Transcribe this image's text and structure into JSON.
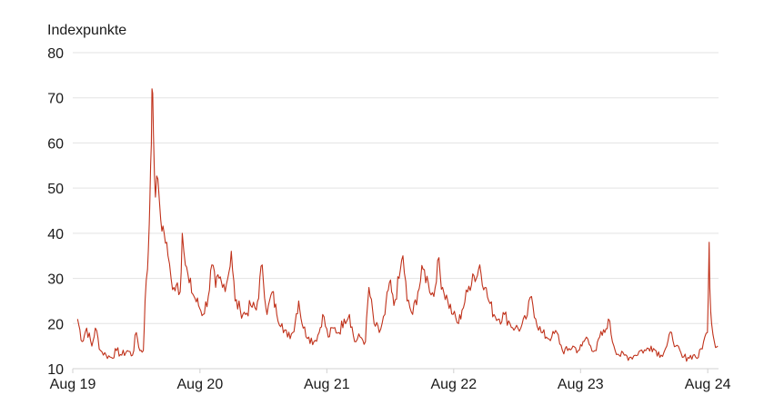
{
  "chart_data": {
    "type": "line",
    "ylabel": "Indexpunkte",
    "ylim": [
      10,
      80
    ],
    "y_ticks": [
      10,
      20,
      30,
      40,
      50,
      60,
      70,
      80
    ],
    "xlim": [
      "2019-08",
      "2024-09"
    ],
    "x_ticks": [
      {
        "label": "Aug 19",
        "date": "2019-08"
      },
      {
        "label": "Aug 20",
        "date": "2020-08"
      },
      {
        "label": "Aug 21",
        "date": "2021-08"
      },
      {
        "label": "Aug 22",
        "date": "2022-08"
      },
      {
        "label": "Aug 23",
        "date": "2023-08"
      },
      {
        "label": "Aug 24",
        "date": "2024-08"
      }
    ],
    "grid": true,
    "legend": "none",
    "series": [
      {
        "color": "#c0321b",
        "points": [
          [
            "2019-08-15",
            21
          ],
          [
            "2019-08-28",
            16
          ],
          [
            "2019-09-10",
            19
          ],
          [
            "2019-09-25",
            15
          ],
          [
            "2019-10-05",
            19
          ],
          [
            "2019-10-20",
            14
          ],
          [
            "2019-11-05",
            13
          ],
          [
            "2019-11-20",
            12.5
          ],
          [
            "2019-12-05",
            14
          ],
          [
            "2019-12-20",
            13
          ],
          [
            "2020-01-05",
            14
          ],
          [
            "2020-01-20",
            13
          ],
          [
            "2020-01-31",
            18
          ],
          [
            "2020-02-10",
            14
          ],
          [
            "2020-02-20",
            14
          ],
          [
            "2020-02-25",
            25
          ],
          [
            "2020-03-03",
            32
          ],
          [
            "2020-03-08",
            42
          ],
          [
            "2020-03-12",
            55
          ],
          [
            "2020-03-16",
            72
          ],
          [
            "2020-03-20",
            62
          ],
          [
            "2020-03-26",
            48
          ],
          [
            "2020-04-02",
            52
          ],
          [
            "2020-04-10",
            43
          ],
          [
            "2020-04-20",
            40
          ],
          [
            "2020-05-01",
            35
          ],
          [
            "2020-05-10",
            30
          ],
          [
            "2020-05-18",
            28
          ],
          [
            "2020-05-28",
            29
          ],
          [
            "2020-06-05",
            27
          ],
          [
            "2020-06-11",
            40
          ],
          [
            "2020-06-20",
            33
          ],
          [
            "2020-07-01",
            29
          ],
          [
            "2020-07-15",
            26
          ],
          [
            "2020-07-28",
            24
          ],
          [
            "2020-08-10",
            22
          ],
          [
            "2020-08-25",
            26
          ],
          [
            "2020-09-04",
            33
          ],
          [
            "2020-09-15",
            28
          ],
          [
            "2020-09-25",
            30
          ],
          [
            "2020-10-05",
            28
          ],
          [
            "2020-10-20",
            30
          ],
          [
            "2020-10-30",
            36
          ],
          [
            "2020-11-10",
            25
          ],
          [
            "2020-11-25",
            23
          ],
          [
            "2020-12-10",
            22
          ],
          [
            "2020-12-25",
            24
          ],
          [
            "2021-01-10",
            23
          ],
          [
            "2021-01-27",
            33
          ],
          [
            "2021-02-10",
            22
          ],
          [
            "2021-02-25",
            27
          ],
          [
            "2021-03-10",
            22
          ],
          [
            "2021-03-25",
            20
          ],
          [
            "2021-04-10",
            17
          ],
          [
            "2021-04-25",
            18
          ],
          [
            "2021-05-12",
            25
          ],
          [
            "2021-05-25",
            19
          ],
          [
            "2021-06-10",
            17
          ],
          [
            "2021-06-25",
            16
          ],
          [
            "2021-07-10",
            18
          ],
          [
            "2021-07-20",
            22
          ],
          [
            "2021-08-05",
            17
          ],
          [
            "2021-08-20",
            19
          ],
          [
            "2021-09-05",
            18
          ],
          [
            "2021-09-20",
            21
          ],
          [
            "2021-10-05",
            22
          ],
          [
            "2021-10-20",
            16
          ],
          [
            "2021-11-05",
            17
          ],
          [
            "2021-11-20",
            16
          ],
          [
            "2021-11-30",
            28
          ],
          [
            "2021-12-15",
            20
          ],
          [
            "2021-12-30",
            18
          ],
          [
            "2022-01-15",
            22
          ],
          [
            "2022-01-28",
            29
          ],
          [
            "2022-02-10",
            24
          ],
          [
            "2022-02-25",
            30
          ],
          [
            "2022-03-08",
            35
          ],
          [
            "2022-03-20",
            25
          ],
          [
            "2022-04-05",
            22
          ],
          [
            "2022-04-20",
            27
          ],
          [
            "2022-05-05",
            32
          ],
          [
            "2022-05-20",
            29
          ],
          [
            "2022-06-05",
            26
          ],
          [
            "2022-06-16",
            34
          ],
          [
            "2022-06-30",
            28
          ],
          [
            "2022-07-15",
            25
          ],
          [
            "2022-07-30",
            22
          ],
          [
            "2022-08-15",
            20
          ],
          [
            "2022-08-25",
            23
          ],
          [
            "2022-09-10",
            27
          ],
          [
            "2022-09-25",
            31
          ],
          [
            "2022-10-05",
            30
          ],
          [
            "2022-10-15",
            33
          ],
          [
            "2022-10-30",
            28
          ],
          [
            "2022-11-10",
            25
          ],
          [
            "2022-11-25",
            22
          ],
          [
            "2022-12-10",
            21
          ],
          [
            "2022-12-25",
            22
          ],
          [
            "2023-01-10",
            20
          ],
          [
            "2023-01-25",
            19
          ],
          [
            "2023-02-10",
            19
          ],
          [
            "2023-02-25",
            21
          ],
          [
            "2023-03-13",
            26
          ],
          [
            "2023-03-25",
            21
          ],
          [
            "2023-04-10",
            18
          ],
          [
            "2023-04-25",
            17
          ],
          [
            "2023-05-10",
            17
          ],
          [
            "2023-05-25",
            18
          ],
          [
            "2023-06-10",
            14
          ],
          [
            "2023-06-25",
            14
          ],
          [
            "2023-07-10",
            15
          ],
          [
            "2023-07-25",
            14
          ],
          [
            "2023-08-05",
            15
          ],
          [
            "2023-08-18",
            17
          ],
          [
            "2023-08-30",
            15
          ],
          [
            "2023-09-15",
            14
          ],
          [
            "2023-09-25",
            17
          ],
          [
            "2023-10-10",
            18
          ],
          [
            "2023-10-20",
            21
          ],
          [
            "2023-11-05",
            15
          ],
          [
            "2023-11-20",
            13
          ],
          [
            "2023-12-05",
            13
          ],
          [
            "2023-12-20",
            12.5
          ],
          [
            "2024-01-05",
            13
          ],
          [
            "2024-01-20",
            14
          ],
          [
            "2024-02-05",
            14
          ],
          [
            "2024-02-20",
            15
          ],
          [
            "2024-03-05",
            14
          ],
          [
            "2024-03-20",
            13
          ],
          [
            "2024-04-05",
            15
          ],
          [
            "2024-04-19",
            18
          ],
          [
            "2024-05-01",
            15
          ],
          [
            "2024-05-20",
            12.5
          ],
          [
            "2024-06-05",
            12.5
          ],
          [
            "2024-06-20",
            13
          ],
          [
            "2024-07-05",
            12.5
          ],
          [
            "2024-07-20",
            16
          ],
          [
            "2024-07-31",
            18
          ],
          [
            "2024-08-05",
            38
          ],
          [
            "2024-08-07",
            28
          ],
          [
            "2024-08-12",
            20
          ],
          [
            "2024-08-20",
            16
          ],
          [
            "2024-08-30",
            15
          ]
        ]
      }
    ]
  }
}
